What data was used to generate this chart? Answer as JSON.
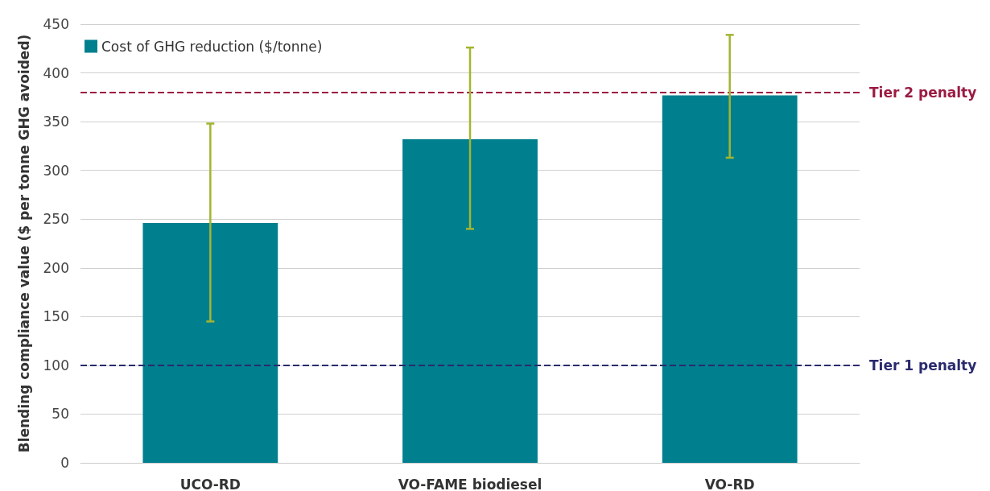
{
  "chart_data": {
    "type": "bar",
    "ylabel": "Blending compliance value ($ per tonne GHG avoided)",
    "categories": [
      "UCO-RD",
      "VO-FAME biodiesel",
      "VO-RD"
    ],
    "series": [
      {
        "name": "Cost of GHG reduction ($/tonne)",
        "color": "#007f8e",
        "values": [
          246,
          332,
          377
        ],
        "errors": [
          [
            145,
            348
          ],
          [
            240,
            426
          ],
          [
            313,
            439
          ]
        ]
      }
    ],
    "ylim": [
      0,
      450
    ],
    "yticks": [
      0,
      50,
      100,
      150,
      200,
      250,
      300,
      350,
      400,
      450
    ],
    "grid": "y",
    "legend": "top left",
    "ref_lines": [
      {
        "axis": "y",
        "value": 380,
        "label": "Tier 2 penalty",
        "color": "#9b1b42",
        "line_style": "dashed"
      },
      {
        "axis": "y",
        "value": 100,
        "label": "Tier 1 penalty",
        "color": "#2a2a6e",
        "line_style": "dashed"
      }
    ]
  }
}
